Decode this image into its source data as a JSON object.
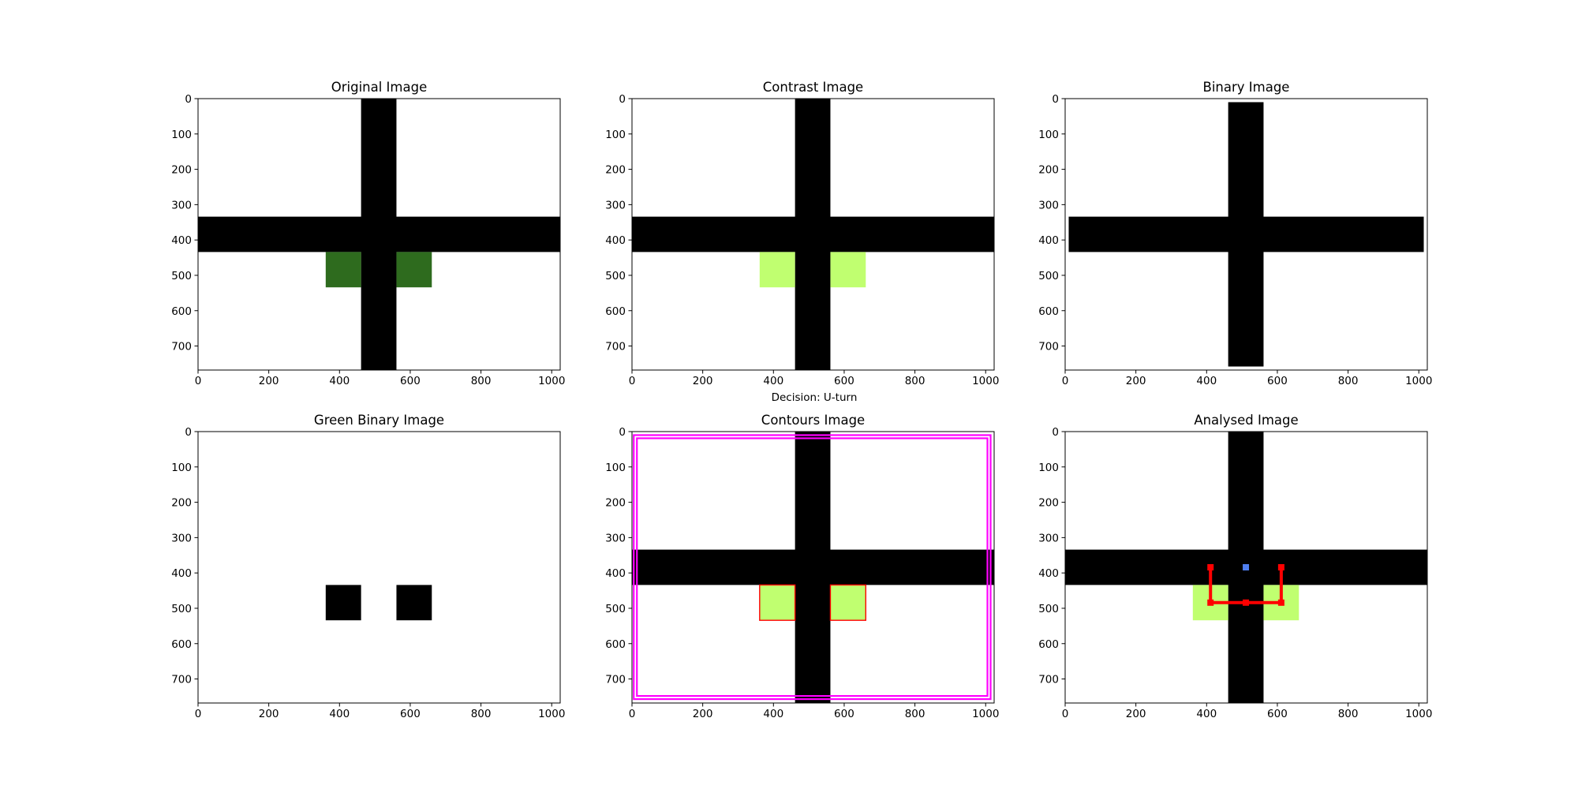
{
  "figure": {
    "decision_text": "Decision: U-turn"
  },
  "chart_data": [
    {
      "type": "image",
      "title": "Original Image",
      "xlabel": "",
      "ylabel": "",
      "xlim": [
        0,
        1024
      ],
      "ylim": [
        768,
        0
      ],
      "xticks": [
        0,
        200,
        400,
        600,
        800,
        1000
      ],
      "yticks": [
        0,
        100,
        200,
        300,
        400,
        500,
        600,
        700
      ],
      "background": "#ffffff",
      "regions": [
        {
          "label": "vertical-line",
          "color": "#000000",
          "x": [
            461,
            561
          ],
          "y": [
            0,
            768
          ]
        },
        {
          "label": "horizontal-line",
          "color": "#000000",
          "x": [
            0,
            1024
          ],
          "y": [
            334,
            434
          ]
        },
        {
          "label": "green-marker-left",
          "color": "#2e6b1e",
          "x": [
            361,
            461
          ],
          "y": [
            434,
            534
          ]
        },
        {
          "label": "green-marker-right",
          "color": "#2e6b1e",
          "x": [
            561,
            661
          ],
          "y": [
            434,
            534
          ]
        }
      ]
    },
    {
      "type": "image",
      "title": "Contrast Image",
      "xlabel": "",
      "ylabel": "",
      "xlim": [
        0,
        1024
      ],
      "ylim": [
        768,
        0
      ],
      "xticks": [
        0,
        200,
        400,
        600,
        800,
        1000
      ],
      "yticks": [
        0,
        100,
        200,
        300,
        400,
        500,
        600,
        700
      ],
      "background": "#ffffff",
      "regions": [
        {
          "label": "vertical-line",
          "color": "#000000",
          "x": [
            461,
            561
          ],
          "y": [
            0,
            768
          ]
        },
        {
          "label": "horizontal-line",
          "color": "#000000",
          "x": [
            0,
            1024
          ],
          "y": [
            334,
            434
          ]
        },
        {
          "label": "green-marker-left",
          "color": "#c0ff70",
          "x": [
            361,
            461
          ],
          "y": [
            434,
            534
          ]
        },
        {
          "label": "green-marker-right",
          "color": "#c0ff70",
          "x": [
            561,
            661
          ],
          "y": [
            434,
            534
          ]
        }
      ]
    },
    {
      "type": "image",
      "title": "Binary Image",
      "xlabel": "",
      "ylabel": "",
      "xlim": [
        0,
        1024
      ],
      "ylim": [
        768,
        0
      ],
      "xticks": [
        0,
        200,
        400,
        600,
        800,
        1000
      ],
      "yticks": [
        0,
        100,
        200,
        300,
        400,
        500,
        600,
        700
      ],
      "background": "#ffffff",
      "regions": [
        {
          "label": "vertical-line",
          "color": "#000000",
          "x": [
            461,
            561
          ],
          "y": [
            10,
            758
          ]
        },
        {
          "label": "horizontal-line",
          "color": "#000000",
          "x": [
            10,
            1014
          ],
          "y": [
            334,
            434
          ]
        }
      ]
    },
    {
      "type": "image",
      "title": "Green Binary Image",
      "xlabel": "",
      "ylabel": "",
      "xlim": [
        0,
        1024
      ],
      "ylim": [
        768,
        0
      ],
      "xticks": [
        0,
        200,
        400,
        600,
        800,
        1000
      ],
      "yticks": [
        0,
        100,
        200,
        300,
        400,
        500,
        600,
        700
      ],
      "background": "#ffffff",
      "regions": [
        {
          "label": "green-blob-left",
          "color": "#000000",
          "x": [
            361,
            461
          ],
          "y": [
            434,
            534
          ]
        },
        {
          "label": "green-blob-right",
          "color": "#000000",
          "x": [
            561,
            661
          ],
          "y": [
            434,
            534
          ]
        }
      ]
    },
    {
      "type": "image",
      "title": "Contours Image",
      "xlabel": "",
      "ylabel": "",
      "xlim": [
        0,
        1024
      ],
      "ylim": [
        768,
        0
      ],
      "xticks": [
        0,
        200,
        400,
        600,
        800,
        1000
      ],
      "yticks": [
        0,
        100,
        200,
        300,
        400,
        500,
        600,
        700
      ],
      "background": "#ffffff",
      "regions": [
        {
          "label": "vertical-line",
          "color": "#000000",
          "x": [
            461,
            561
          ],
          "y": [
            0,
            768
          ]
        },
        {
          "label": "horizontal-line",
          "color": "#000000",
          "x": [
            0,
            1024
          ],
          "y": [
            334,
            434
          ]
        },
        {
          "label": "green-marker-left",
          "color": "#c0ff70",
          "x": [
            361,
            461
          ],
          "y": [
            434,
            534
          ]
        },
        {
          "label": "green-marker-right",
          "color": "#c0ff70",
          "x": [
            561,
            661
          ],
          "y": [
            434,
            534
          ]
        }
      ],
      "outlines": [
        {
          "label": "line-contour",
          "color": "#ff00ff",
          "x": [
            5,
            1014
          ],
          "y": [
            10,
            757
          ]
        },
        {
          "label": "green-contour-left",
          "color": "#ff0000",
          "x": [
            361,
            461
          ],
          "y": [
            434,
            534
          ]
        },
        {
          "label": "green-contour-right",
          "color": "#ff0000",
          "x": [
            561,
            661
          ],
          "y": [
            434,
            534
          ]
        }
      ]
    },
    {
      "type": "image",
      "title": "Analysed Image",
      "xlabel": "",
      "ylabel": "",
      "xlim": [
        0,
        1024
      ],
      "ylim": [
        768,
        0
      ],
      "xticks": [
        0,
        200,
        400,
        600,
        800,
        1000
      ],
      "yticks": [
        0,
        100,
        200,
        300,
        400,
        500,
        600,
        700
      ],
      "background": "#ffffff",
      "regions": [
        {
          "label": "vertical-line",
          "color": "#000000",
          "x": [
            461,
            561
          ],
          "y": [
            0,
            768
          ]
        },
        {
          "label": "horizontal-line",
          "color": "#000000",
          "x": [
            0,
            1024
          ],
          "y": [
            334,
            434
          ]
        },
        {
          "label": "green-marker-left",
          "color": "#c0ff70",
          "x": [
            361,
            461
          ],
          "y": [
            434,
            534
          ]
        },
        {
          "label": "green-marker-right",
          "color": "#c0ff70",
          "x": [
            561,
            661
          ],
          "y": [
            434,
            534
          ]
        }
      ],
      "path": {
        "color": "#ff0000",
        "points": [
          [
            411,
            384
          ],
          [
            411,
            484
          ],
          [
            511,
            484
          ],
          [
            611,
            484
          ],
          [
            611,
            384
          ]
        ]
      },
      "center_point": {
        "color": "#4f7ff0",
        "x": 511,
        "y": 384
      }
    }
  ]
}
